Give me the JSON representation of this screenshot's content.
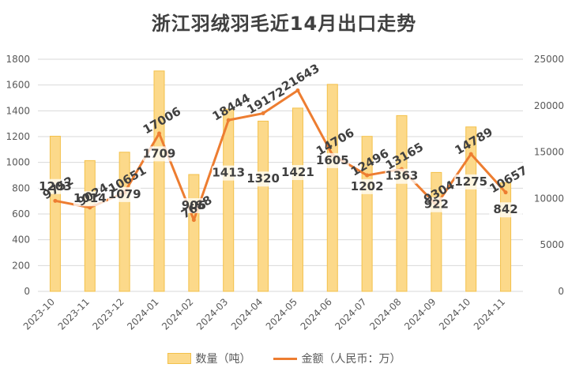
{
  "chart_data": {
    "type": "bar+line",
    "title": "浙江羽绒羽毛近14月出口走势",
    "categories": [
      "2023-10",
      "2023-11",
      "2023-12",
      "2024-01",
      "2024-02",
      "2024-03",
      "2024-04",
      "2024-05",
      "2024-06",
      "2024-07",
      "2024-08",
      "2024-09",
      "2024-10",
      "2024-11"
    ],
    "series": [
      {
        "name": "数量（吨）",
        "type": "bar",
        "axis": "left",
        "values": [
          1203,
          1014,
          1079,
          1709,
          906,
          1413,
          1320,
          1421,
          1605,
          1202,
          1363,
          922,
          1275,
          842
        ],
        "color": "#FCD98A"
      },
      {
        "name": "金额（人民币：万）",
        "type": "line",
        "axis": "right",
        "values": [
          9752,
          9024,
          10651,
          17006,
          7688,
          18444,
          19172,
          21643,
          14706,
          12496,
          13165,
          9304,
          14789,
          10657
        ],
        "color": "#ED7D31"
      }
    ],
    "y_left": {
      "lim": [
        0,
        1800
      ],
      "ticks": [
        0,
        200,
        400,
        600,
        800,
        1000,
        1200,
        1400,
        1600,
        1800
      ]
    },
    "y_right": {
      "lim": [
        0,
        25000
      ],
      "ticks": [
        0,
        5000,
        10000,
        15000,
        20000,
        25000
      ]
    },
    "grid": true,
    "legend_position": "bottom"
  }
}
